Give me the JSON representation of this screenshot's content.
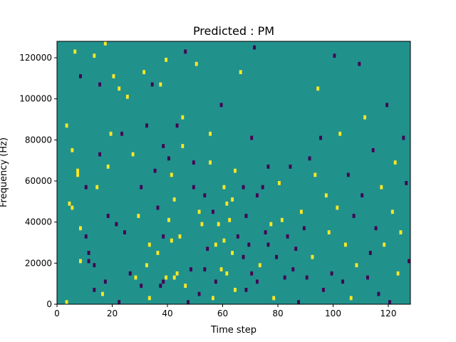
{
  "chart_data": {
    "type": "heatmap",
    "title": "Predicted : PM",
    "xlabel": "Time step",
    "ylabel": "Frequency (Hz)",
    "xlim": [
      0,
      128
    ],
    "ylim": [
      0,
      128000
    ],
    "x_ticks": [
      0,
      20,
      40,
      60,
      80,
      100,
      120
    ],
    "y_ticks": [
      0,
      20000,
      40000,
      60000,
      80000,
      100000,
      120000
    ],
    "y_tick_labels": [
      "0",
      "20000",
      "40000",
      "60000",
      "80000",
      "100000",
      "120000"
    ],
    "colormap": "viridis",
    "background_value": 0,
    "value_colors": {
      "-1": "#440154",
      "0": "#21918c",
      "1": "#fde725"
    },
    "n_frequency_bins": 64,
    "n_time_steps": 128,
    "note_events": [
      {
        "t": 3,
        "f": 1000,
        "v": 1
      },
      {
        "t": 3,
        "f": 87000,
        "v": 1
      },
      {
        "t": 4,
        "f": 49000,
        "v": 1
      },
      {
        "t": 5,
        "f": 47000,
        "v": 1
      },
      {
        "t": 5,
        "f": 75000,
        "v": 1
      },
      {
        "t": 6,
        "f": 123000,
        "v": 1
      },
      {
        "t": 7,
        "f": 65000,
        "v": 1
      },
      {
        "t": 7,
        "f": 63000,
        "v": 1
      },
      {
        "t": 8,
        "f": 21000,
        "v": 1
      },
      {
        "t": 8,
        "f": 37000,
        "v": 1
      },
      {
        "t": 8,
        "f": 111000,
        "v": -1
      },
      {
        "t": 10,
        "f": 33000,
        "v": -1
      },
      {
        "t": 10,
        "f": 57000,
        "v": -1
      },
      {
        "t": 11,
        "f": 21000,
        "v": -1
      },
      {
        "t": 11,
        "f": 25000,
        "v": -1
      },
      {
        "t": 13,
        "f": 7000,
        "v": -1
      },
      {
        "t": 13,
        "f": 19000,
        "v": -1
      },
      {
        "t": 13,
        "f": 121000,
        "v": 1
      },
      {
        "t": 14,
        "f": 57000,
        "v": 1
      },
      {
        "t": 15,
        "f": 73000,
        "v": -1
      },
      {
        "t": 15,
        "f": 107000,
        "v": -1
      },
      {
        "t": 16,
        "f": 5000,
        "v": 1
      },
      {
        "t": 17,
        "f": 127000,
        "v": 1
      },
      {
        "t": 17,
        "f": 11000,
        "v": -1
      },
      {
        "t": 18,
        "f": 43000,
        "v": -1
      },
      {
        "t": 18,
        "f": 67000,
        "v": 1
      },
      {
        "t": 19,
        "f": 83000,
        "v": 1
      },
      {
        "t": 20,
        "f": 111000,
        "v": 1
      },
      {
        "t": 21,
        "f": 39000,
        "v": -1
      },
      {
        "t": 22,
        "f": 105000,
        "v": 1
      },
      {
        "t": 22,
        "f": 1000,
        "v": -1
      },
      {
        "t": 23,
        "f": 83000,
        "v": -1
      },
      {
        "t": 24,
        "f": 35000,
        "v": -1
      },
      {
        "t": 25,
        "f": 101000,
        "v": 1
      },
      {
        "t": 26,
        "f": 15000,
        "v": -1
      },
      {
        "t": 27,
        "f": 73000,
        "v": 1
      },
      {
        "t": 28,
        "f": 13000,
        "v": 1
      },
      {
        "t": 29,
        "f": 43000,
        "v": 1
      },
      {
        "t": 30,
        "f": 9000,
        "v": -1
      },
      {
        "t": 30,
        "f": 57000,
        "v": -1
      },
      {
        "t": 31,
        "f": 113000,
        "v": 1
      },
      {
        "t": 32,
        "f": 19000,
        "v": 1
      },
      {
        "t": 32,
        "f": 87000,
        "v": -1
      },
      {
        "t": 33,
        "f": 3000,
        "v": 1
      },
      {
        "t": 33,
        "f": 29000,
        "v": 1
      },
      {
        "t": 34,
        "f": 107000,
        "v": -1
      },
      {
        "t": 35,
        "f": 65000,
        "v": -1
      },
      {
        "t": 36,
        "f": 25000,
        "v": 1
      },
      {
        "t": 36,
        "f": 47000,
        "v": -1
      },
      {
        "t": 37,
        "f": 9000,
        "v": -1
      },
      {
        "t": 37,
        "f": 107000,
        "v": 1
      },
      {
        "t": 38,
        "f": 11000,
        "v": -1
      },
      {
        "t": 38,
        "f": 33000,
        "v": -1
      },
      {
        "t": 38,
        "f": 77000,
        "v": -1
      },
      {
        "t": 39,
        "f": 119000,
        "v": 1
      },
      {
        "t": 39,
        "f": 13000,
        "v": 1
      },
      {
        "t": 40,
        "f": 71000,
        "v": -1
      },
      {
        "t": 40,
        "f": 41000,
        "v": 1
      },
      {
        "t": 41,
        "f": 31000,
        "v": 1
      },
      {
        "t": 41,
        "f": 63000,
        "v": 1
      },
      {
        "t": 42,
        "f": 51000,
        "v": 1
      },
      {
        "t": 42,
        "f": 13000,
        "v": 1
      },
      {
        "t": 43,
        "f": 15000,
        "v": 1
      },
      {
        "t": 43,
        "f": 87000,
        "v": -1
      },
      {
        "t": 44,
        "f": 33000,
        "v": 1
      },
      {
        "t": 45,
        "f": 91000,
        "v": 1
      },
      {
        "t": 45,
        "f": 77000,
        "v": 1
      },
      {
        "t": 46,
        "f": 9000,
        "v": 1
      },
      {
        "t": 46,
        "f": 123000,
        "v": -1
      },
      {
        "t": 47,
        "f": 1000,
        "v": -1
      },
      {
        "t": 48,
        "f": 17000,
        "v": -1
      },
      {
        "t": 49,
        "f": 69000,
        "v": -1
      },
      {
        "t": 49,
        "f": 57000,
        "v": -1
      },
      {
        "t": 50,
        "f": 117000,
        "v": 1
      },
      {
        "t": 51,
        "f": 45000,
        "v": 1
      },
      {
        "t": 51,
        "f": 5000,
        "v": -1
      },
      {
        "t": 52,
        "f": 39000,
        "v": 1
      },
      {
        "t": 53,
        "f": 17000,
        "v": -1
      },
      {
        "t": 53,
        "f": 53000,
        "v": -1
      },
      {
        "t": 54,
        "f": 27000,
        "v": -1
      },
      {
        "t": 55,
        "f": 83000,
        "v": 1
      },
      {
        "t": 55,
        "f": 69000,
        "v": 1
      },
      {
        "t": 56,
        "f": 3000,
        "v": 1
      },
      {
        "t": 56,
        "f": 45000,
        "v": -1
      },
      {
        "t": 57,
        "f": 29000,
        "v": 1
      },
      {
        "t": 57,
        "f": 11000,
        "v": -1
      },
      {
        "t": 58,
        "f": 39000,
        "v": 1
      },
      {
        "t": 59,
        "f": 17000,
        "v": 1
      },
      {
        "t": 59,
        "f": 97000,
        "v": -1
      },
      {
        "t": 60,
        "f": 31000,
        "v": 1
      },
      {
        "t": 60,
        "f": 57000,
        "v": 1
      },
      {
        "t": 61,
        "f": 15000,
        "v": 1
      },
      {
        "t": 61,
        "f": 49000,
        "v": 1
      },
      {
        "t": 62,
        "f": 41000,
        "v": 1
      },
      {
        "t": 63,
        "f": 25000,
        "v": 1
      },
      {
        "t": 63,
        "f": 51000,
        "v": 1
      },
      {
        "t": 64,
        "f": 65000,
        "v": 1
      },
      {
        "t": 64,
        "f": 7000,
        "v": 1
      },
      {
        "t": 65,
        "f": 33000,
        "v": -1
      },
      {
        "t": 66,
        "f": 113000,
        "v": 1
      },
      {
        "t": 67,
        "f": 57000,
        "v": -1
      },
      {
        "t": 67,
        "f": 23000,
        "v": -1
      },
      {
        "t": 68,
        "f": 7000,
        "v": -1
      },
      {
        "t": 68,
        "f": 43000,
        "v": -1
      },
      {
        "t": 69,
        "f": 29000,
        "v": -1
      },
      {
        "t": 70,
        "f": 81000,
        "v": -1
      },
      {
        "t": 70,
        "f": 15000,
        "v": -1
      },
      {
        "t": 71,
        "f": 125000,
        "v": -1
      },
      {
        "t": 72,
        "f": 11000,
        "v": -1
      },
      {
        "t": 72,
        "f": 53000,
        "v": -1
      },
      {
        "t": 73,
        "f": 19000,
        "v": 1
      },
      {
        "t": 74,
        "f": 57000,
        "v": -1
      },
      {
        "t": 75,
        "f": 35000,
        "v": -1
      },
      {
        "t": 76,
        "f": 67000,
        "v": -1
      },
      {
        "t": 76,
        "f": 29000,
        "v": -1
      },
      {
        "t": 77,
        "f": 39000,
        "v": 1
      },
      {
        "t": 78,
        "f": 3000,
        "v": 1
      },
      {
        "t": 79,
        "f": 23000,
        "v": -1
      },
      {
        "t": 80,
        "f": 59000,
        "v": 1
      },
      {
        "t": 81,
        "f": 41000,
        "v": 1
      },
      {
        "t": 82,
        "f": 13000,
        "v": -1
      },
      {
        "t": 83,
        "f": 33000,
        "v": -1
      },
      {
        "t": 84,
        "f": 67000,
        "v": -1
      },
      {
        "t": 85,
        "f": 17000,
        "v": -1
      },
      {
        "t": 86,
        "f": 27000,
        "v": -1
      },
      {
        "t": 87,
        "f": 1000,
        "v": -1
      },
      {
        "t": 88,
        "f": 45000,
        "v": 1
      },
      {
        "t": 89,
        "f": 37000,
        "v": -1
      },
      {
        "t": 90,
        "f": 13000,
        "v": -1
      },
      {
        "t": 91,
        "f": 71000,
        "v": -1
      },
      {
        "t": 92,
        "f": 23000,
        "v": 1
      },
      {
        "t": 93,
        "f": 63000,
        "v": 1
      },
      {
        "t": 94,
        "f": 105000,
        "v": 1
      },
      {
        "t": 95,
        "f": 81000,
        "v": -1
      },
      {
        "t": 96,
        "f": 7000,
        "v": -1
      },
      {
        "t": 97,
        "f": 53000,
        "v": 1
      },
      {
        "t": 98,
        "f": 35000,
        "v": 1
      },
      {
        "t": 99,
        "f": 15000,
        "v": -1
      },
      {
        "t": 100,
        "f": 121000,
        "v": -1
      },
      {
        "t": 101,
        "f": 47000,
        "v": 1
      },
      {
        "t": 102,
        "f": 83000,
        "v": 1
      },
      {
        "t": 103,
        "f": 11000,
        "v": -1
      },
      {
        "t": 104,
        "f": 29000,
        "v": 1
      },
      {
        "t": 105,
        "f": 63000,
        "v": -1
      },
      {
        "t": 106,
        "f": 3000,
        "v": 1
      },
      {
        "t": 107,
        "f": 43000,
        "v": -1
      },
      {
        "t": 108,
        "f": 19000,
        "v": 1
      },
      {
        "t": 109,
        "f": 117000,
        "v": -1
      },
      {
        "t": 110,
        "f": 53000,
        "v": -1
      },
      {
        "t": 111,
        "f": 91000,
        "v": 1
      },
      {
        "t": 112,
        "f": 13000,
        "v": -1
      },
      {
        "t": 113,
        "f": 25000,
        "v": -1
      },
      {
        "t": 114,
        "f": 75000,
        "v": -1
      },
      {
        "t": 115,
        "f": 37000,
        "v": -1
      },
      {
        "t": 116,
        "f": 5000,
        "v": -1
      },
      {
        "t": 117,
        "f": 57000,
        "v": 1
      },
      {
        "t": 118,
        "f": 29000,
        "v": 1
      },
      {
        "t": 119,
        "f": 97000,
        "v": -1
      },
      {
        "t": 120,
        "f": 1000,
        "v": -1
      },
      {
        "t": 121,
        "f": 45000,
        "v": 1
      },
      {
        "t": 122,
        "f": 69000,
        "v": 1
      },
      {
        "t": 123,
        "f": 15000,
        "v": 1
      },
      {
        "t": 124,
        "f": 35000,
        "v": 1
      },
      {
        "t": 125,
        "f": 81000,
        "v": -1
      },
      {
        "t": 126,
        "f": 59000,
        "v": -1
      },
      {
        "t": 127,
        "f": 21000,
        "v": -1
      }
    ]
  }
}
